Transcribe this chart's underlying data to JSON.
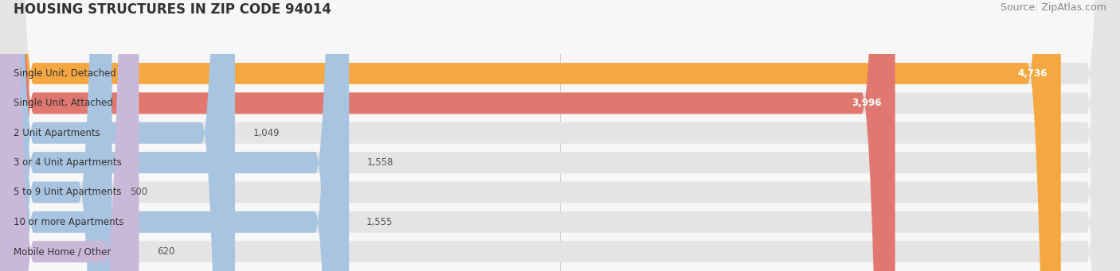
{
  "title": "HOUSING STRUCTURES IN ZIP CODE 94014",
  "source": "Source: ZipAtlas.com",
  "categories": [
    "Single Unit, Detached",
    "Single Unit, Attached",
    "2 Unit Apartments",
    "3 or 4 Unit Apartments",
    "5 to 9 Unit Apartments",
    "10 or more Apartments",
    "Mobile Home / Other"
  ],
  "values": [
    4736,
    3996,
    1049,
    1558,
    500,
    1555,
    620
  ],
  "bar_colors": [
    "#F5A841",
    "#E07870",
    "#A8C4E0",
    "#A8C4E0",
    "#A8C4E0",
    "#A8C4E0",
    "#C9B8D8"
  ],
  "value_inside": [
    true,
    true,
    false,
    false,
    false,
    false,
    false
  ],
  "xlim": [
    0,
    5000
  ],
  "xticks": [
    0,
    2500,
    5000
  ],
  "background_color": "#F7F7F7",
  "bar_background": "#E4E4E4",
  "title_fontsize": 12,
  "source_fontsize": 9,
  "label_fontsize": 8.5,
  "value_fontsize": 8.5,
  "bar_height": 0.72
}
